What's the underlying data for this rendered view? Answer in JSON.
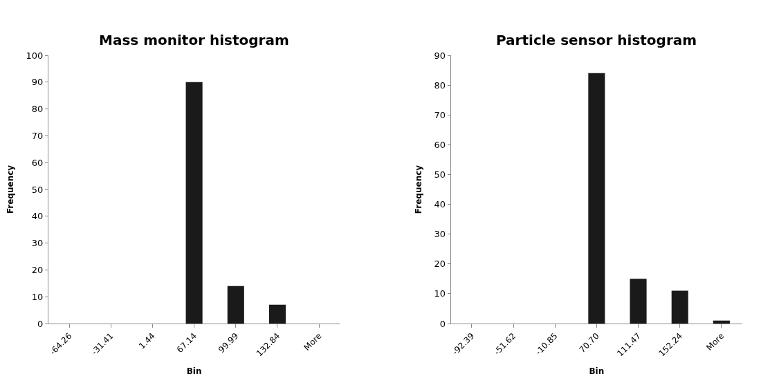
{
  "chart_data": [
    {
      "type": "bar",
      "title": "Mass monitor histogram",
      "xlabel": "Bin",
      "ylabel": "Frequency",
      "categories": [
        "-64.26",
        "-31.41",
        "1.44",
        "67.14",
        "99.99",
        "132.84",
        "More"
      ],
      "values": [
        0,
        0,
        0,
        90,
        14,
        7,
        0
      ],
      "color": "#1a1a1a",
      "ylim": [
        0,
        100
      ],
      "yticks": [
        0,
        10,
        20,
        30,
        40,
        50,
        60,
        70,
        80,
        90,
        100
      ],
      "legend": false
    },
    {
      "type": "bar",
      "title": "Particle sensor histogram",
      "xlabel": "Bin",
      "ylabel": "Frequency",
      "categories": [
        "-92.39",
        "-51.62",
        "-10.85",
        "70.70",
        "111.47",
        "152.24",
        "More"
      ],
      "values": [
        0,
        0,
        0,
        84,
        15,
        11,
        1
      ],
      "color": "#1a1a1a",
      "ylim": [
        0,
        90
      ],
      "yticks": [
        0,
        10,
        20,
        30,
        40,
        50,
        60,
        70,
        80,
        90
      ],
      "legend": false
    }
  ]
}
